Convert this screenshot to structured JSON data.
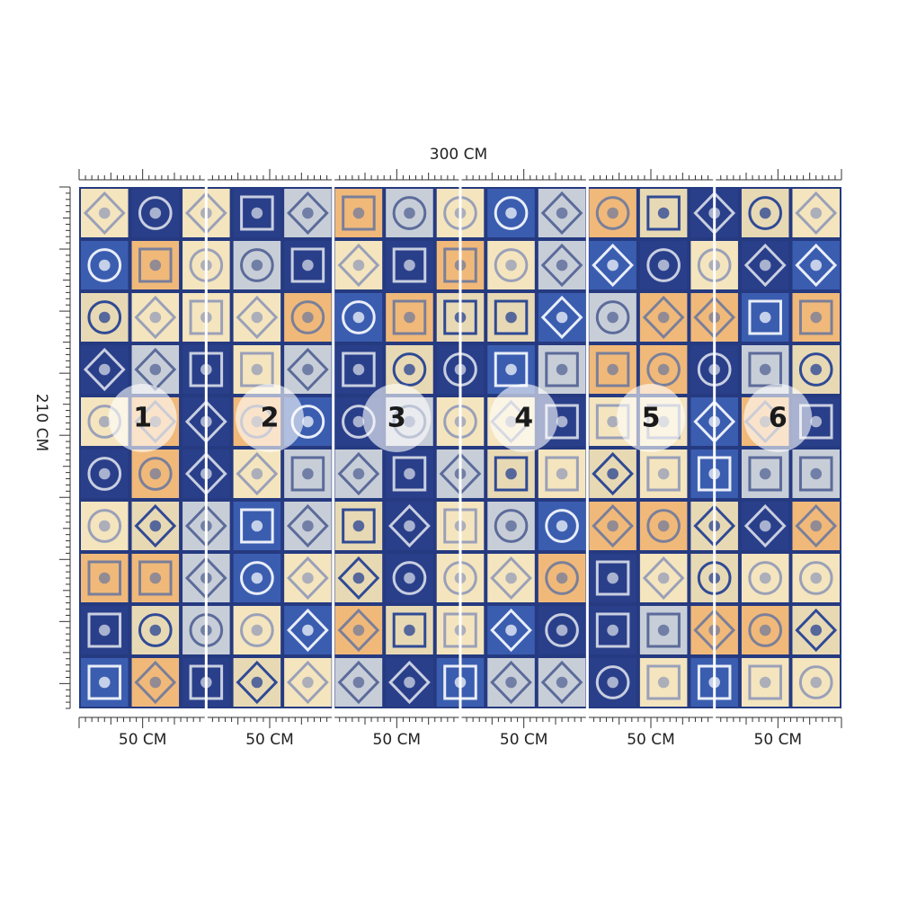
{
  "dimensions": {
    "width_label": "300 CM",
    "height_label": "210 CM"
  },
  "panels": [
    {
      "number": 1,
      "width_label": "50 CM"
    },
    {
      "number": 2,
      "width_label": "50 CM"
    },
    {
      "number": 3,
      "width_label": "50 CM"
    },
    {
      "number": 4,
      "width_label": "50 CM"
    },
    {
      "number": 5,
      "width_label": "50 CM"
    },
    {
      "number": 6,
      "width_label": "50 CM"
    }
  ]
}
